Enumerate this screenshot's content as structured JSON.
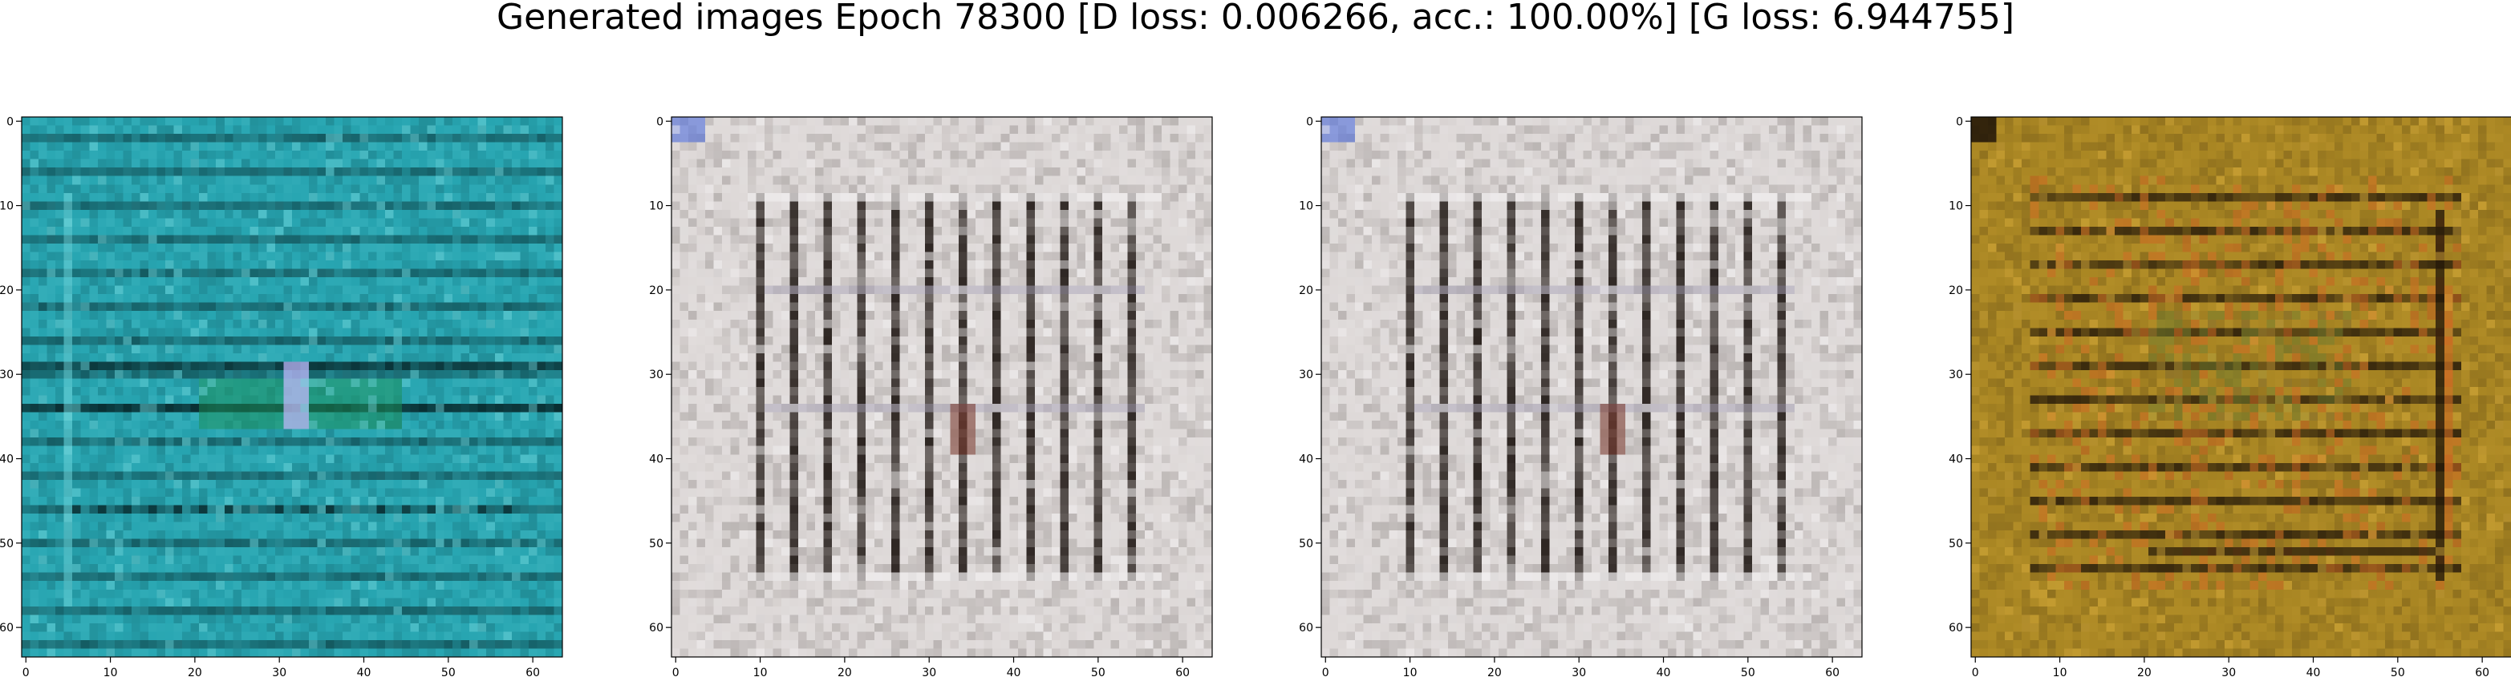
{
  "chart_data": {
    "type": "heatmap",
    "title": "Generated images Epoch 78300 [D loss: 0.006266, acc.: 100.00%] [G loss: 6.944755]",
    "grid": false,
    "subplots": [
      {
        "name": "",
        "palette": {
          "base": "#27a5b1",
          "dark": "#062427",
          "light": "#6fd5db",
          "accent": "#1c8f56",
          "hot": "#c8b9ff"
        },
        "xlim": [
          -0.5,
          63.5
        ],
        "ylim": [
          63.5,
          -0.5
        ],
        "xticks": [
          0,
          10,
          20,
          30,
          40,
          50,
          60
        ],
        "yticks": [
          0,
          10,
          20,
          30,
          40,
          50,
          60
        ]
      },
      {
        "name": "",
        "palette": {
          "base": "#ddd8d7",
          "dark": "#1c1410",
          "light": "#f4f2f3",
          "accent": "#a9a4b8",
          "hot": "#7a3c31"
        },
        "xlim": [
          -0.5,
          63.5
        ],
        "ylim": [
          63.5,
          -0.5
        ],
        "xticks": [
          0,
          10,
          20,
          30,
          40,
          50,
          60
        ],
        "yticks": [
          0,
          10,
          20,
          30,
          40,
          50,
          60
        ]
      },
      {
        "name": "",
        "palette": {
          "base": "#ddd8d7",
          "dark": "#1c1410",
          "light": "#f4f2f3",
          "accent": "#a9a4b8",
          "hot": "#7a3c31"
        },
        "xlim": [
          -0.5,
          63.5
        ],
        "ylim": [
          63.5,
          -0.5
        ],
        "xticks": [
          0,
          10,
          20,
          30,
          40,
          50,
          60
        ],
        "yticks": [
          0,
          10,
          20,
          30,
          40,
          50,
          60
        ]
      },
      {
        "name": "",
        "palette": {
          "base": "#a98623",
          "dark": "#1e1308",
          "light": "#d9ad3c",
          "accent": "#cd6a23",
          "hot": "#6c7a2e"
        },
        "xlim": [
          -0.5,
          63.5
        ],
        "ylim": [
          63.5,
          -0.5
        ],
        "xticks": [
          0,
          10,
          20,
          30,
          40,
          50,
          60
        ],
        "yticks": [
          0,
          10,
          20,
          30,
          40,
          50,
          60
        ]
      }
    ]
  }
}
